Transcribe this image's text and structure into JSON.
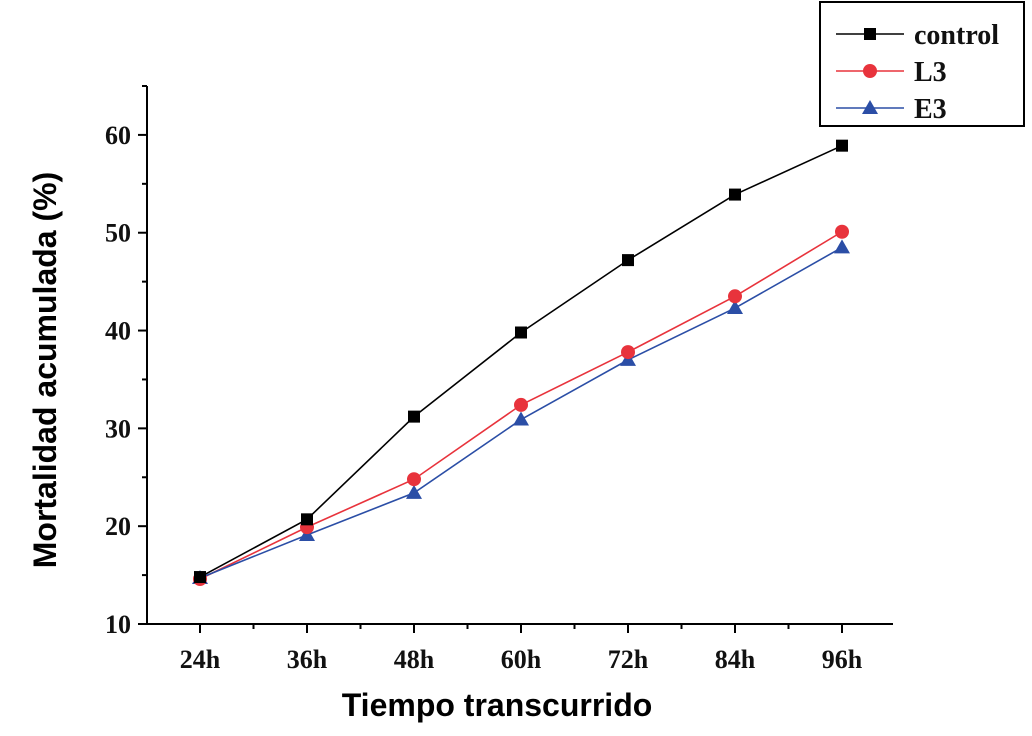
{
  "chart_data": {
    "type": "line",
    "title": "",
    "xlabel": "Tiempo transcurrido",
    "ylabel": "Mortalidad acumulada (%)",
    "categories": [
      "24h",
      "36h",
      "48h",
      "60h",
      "72h",
      "84h",
      "96h"
    ],
    "ylim": [
      10,
      65
    ],
    "yticks": [
      10,
      20,
      30,
      40,
      50,
      60
    ],
    "grid": false,
    "legend_position": "top-right",
    "series": [
      {
        "name": "control",
        "color": "#000000",
        "marker": "square",
        "values": [
          14.8,
          20.7,
          31.2,
          39.8,
          47.2,
          53.9,
          58.9
        ]
      },
      {
        "name": "L3",
        "color": "#e8333c",
        "marker": "circle",
        "values": [
          14.6,
          19.9,
          24.8,
          32.4,
          37.8,
          43.5,
          50.1
        ]
      },
      {
        "name": "E3",
        "color": "#2b4ea6",
        "marker": "triangle",
        "values": [
          14.7,
          19.1,
          23.4,
          30.9,
          37.0,
          42.3,
          48.5
        ]
      }
    ]
  }
}
